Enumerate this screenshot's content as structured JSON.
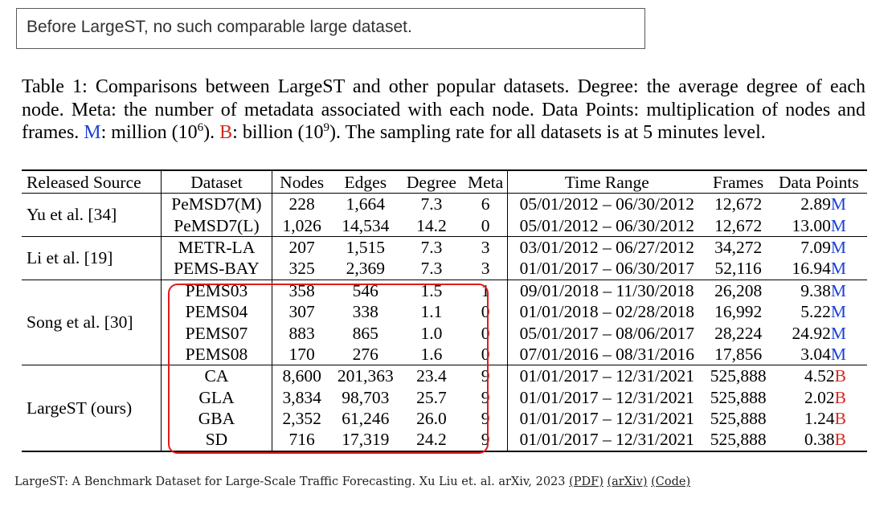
{
  "tooltip": "Before LargeST, no such comparable large dataset.",
  "caption": {
    "part1": "Table 1: Comparisons between LargeST and other popular datasets. Degree: the average degree of each node. Meta: the number of metadata associated with each node. Data Points: multiplication of nodes and frames. ",
    "m_letter": "M",
    "part2": ": million (10",
    "m_exp": "6",
    "part3": "). ",
    "b_letter": "B",
    "part4": ": billion (10",
    "b_exp": "9",
    "part5": "). The sampling rate for all datasets is at 5 minutes level."
  },
  "table": {
    "headers": [
      "Released Source",
      "Dataset",
      "Nodes",
      "Edges",
      "Degree",
      "Meta",
      "Time Range",
      "Frames",
      "Data Points"
    ],
    "groups": [
      {
        "source": "Yu et al. [34]",
        "rows": [
          {
            "dataset": "PeMSD7(M)",
            "nodes": "228",
            "edges": "1,664",
            "degree": "7.3",
            "meta": "6",
            "time": "05/01/2012 – 06/30/2012",
            "frames": "12,672",
            "points": "2.89",
            "unit": "M"
          },
          {
            "dataset": "PeMSD7(L)",
            "nodes": "1,026",
            "edges": "14,534",
            "degree": "14.2",
            "meta": "0",
            "time": "05/01/2012 – 06/30/2012",
            "frames": "12,672",
            "points": "13.00",
            "unit": "M"
          }
        ]
      },
      {
        "source": "Li et al. [19]",
        "rows": [
          {
            "dataset": "METR-LA",
            "nodes": "207",
            "edges": "1,515",
            "degree": "7.3",
            "meta": "3",
            "time": "03/01/2012 – 06/27/2012",
            "frames": "34,272",
            "points": "7.09",
            "unit": "M"
          },
          {
            "dataset": "PEMS-BAY",
            "nodes": "325",
            "edges": "2,369",
            "degree": "7.3",
            "meta": "3",
            "time": "01/01/2017 – 06/30/2017",
            "frames": "52,116",
            "points": "16.94",
            "unit": "M"
          }
        ]
      },
      {
        "source": "Song et al. [30]",
        "rows": [
          {
            "dataset": "PEMS03",
            "nodes": "358",
            "edges": "546",
            "degree": "1.5",
            "meta": "1",
            "time": "09/01/2018 – 11/30/2018",
            "frames": "26,208",
            "points": "9.38",
            "unit": "M"
          },
          {
            "dataset": "PEMS04",
            "nodes": "307",
            "edges": "338",
            "degree": "1.1",
            "meta": "0",
            "time": "01/01/2018 – 02/28/2018",
            "frames": "16,992",
            "points": "5.22",
            "unit": "M"
          },
          {
            "dataset": "PEMS07",
            "nodes": "883",
            "edges": "865",
            "degree": "1.0",
            "meta": "0",
            "time": "05/01/2017 – 08/06/2017",
            "frames": "28,224",
            "points": "24.92",
            "unit": "M"
          },
          {
            "dataset": "PEMS08",
            "nodes": "170",
            "edges": "276",
            "degree": "1.6",
            "meta": "0",
            "time": "07/01/2016 – 08/31/2016",
            "frames": "17,856",
            "points": "3.04",
            "unit": "M"
          }
        ]
      },
      {
        "source": "LargeST (ours)",
        "rows": [
          {
            "dataset": "CA",
            "nodes": "8,600",
            "edges": "201,363",
            "degree": "23.4",
            "meta": "9",
            "time": "01/01/2017 – 12/31/2021",
            "frames": "525,888",
            "points": "4.52",
            "unit": "B"
          },
          {
            "dataset": "GLA",
            "nodes": "3,834",
            "edges": "98,703",
            "degree": "25.7",
            "meta": "9",
            "time": "01/01/2017 – 12/31/2021",
            "frames": "525,888",
            "points": "2.02",
            "unit": "B"
          },
          {
            "dataset": "GBA",
            "nodes": "2,352",
            "edges": "61,246",
            "degree": "26.0",
            "meta": "9",
            "time": "01/01/2017 – 12/31/2021",
            "frames": "525,888",
            "points": "1.24",
            "unit": "B"
          },
          {
            "dataset": "SD",
            "nodes": "716",
            "edges": "17,319",
            "degree": "24.2",
            "meta": "9",
            "time": "01/01/2017 – 12/31/2021",
            "frames": "525,888",
            "points": "0.38",
            "unit": "B"
          }
        ]
      }
    ]
  },
  "colors": {
    "million": "#1a3fd6",
    "billion": "#d62a1f",
    "highlight": "#e31a1a"
  },
  "citation": {
    "text": "LargeST: A Benchmark Dataset for Large-Scale Traffic Forecasting. Xu Liu et. al. arXiv, 2023 ",
    "links": [
      "(PDF)",
      "(arXiv)",
      "(Code)"
    ]
  }
}
